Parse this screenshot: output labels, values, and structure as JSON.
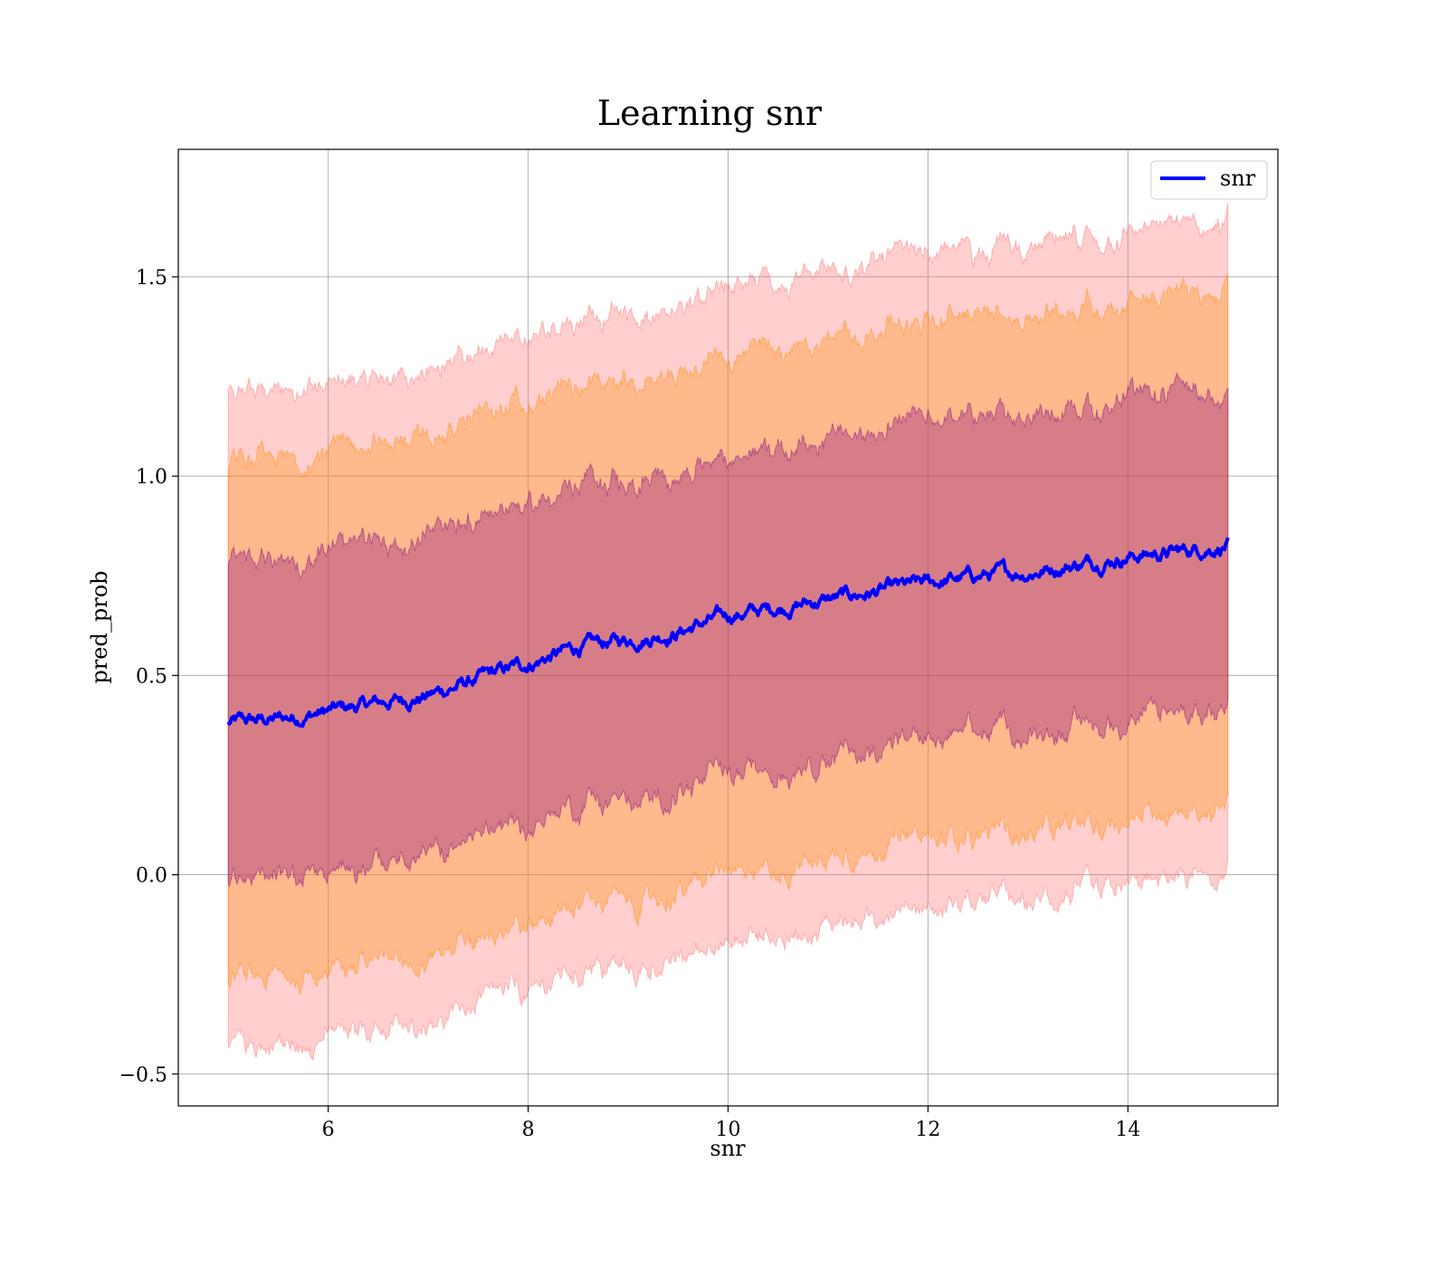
{
  "chart_data": {
    "type": "line",
    "title": "Learning snr",
    "xlabel": "snr",
    "ylabel": "pred_prob",
    "xlim": [
      4.5,
      15.5
    ],
    "ylim": [
      -0.58,
      1.82
    ],
    "xticks": [
      6,
      8,
      10,
      12,
      14
    ],
    "yticks": [
      -0.5,
      0.0,
      0.5,
      1.0,
      1.5
    ],
    "xtick_labels": [
      "6",
      "8",
      "10",
      "12",
      "14"
    ],
    "ytick_labels": [
      "−0.5",
      "0.0",
      "0.5",
      "1.0",
      "1.5"
    ],
    "grid": true,
    "legend": {
      "position": "top-right",
      "entries": [
        "snr"
      ]
    },
    "series": [
      {
        "name": "snr",
        "color": "#0000ff",
        "x": [
          5.0,
          5.5,
          6.0,
          6.5,
          7.0,
          7.5,
          8.0,
          8.5,
          9.0,
          9.5,
          10.0,
          10.5,
          11.0,
          11.5,
          12.0,
          12.5,
          13.0,
          13.5,
          14.0,
          14.5,
          15.0
        ],
        "y": [
          0.38,
          0.39,
          0.41,
          0.43,
          0.45,
          0.49,
          0.53,
          0.57,
          0.59,
          0.61,
          0.65,
          0.67,
          0.69,
          0.71,
          0.73,
          0.75,
          0.76,
          0.78,
          0.8,
          0.81,
          0.83
        ]
      }
    ],
    "bands": [
      {
        "sigma": 1,
        "color": "#800080",
        "lower_offset": -0.4,
        "upper_offset": 0.4
      },
      {
        "sigma": 2,
        "color": "#ff8c00",
        "lower_offset": -0.65,
        "upper_offset": 0.65
      },
      {
        "sigma": 3,
        "color": "#ff6b6b",
        "lower_offset": -0.82,
        "upper_offset": 0.82
      }
    ]
  }
}
